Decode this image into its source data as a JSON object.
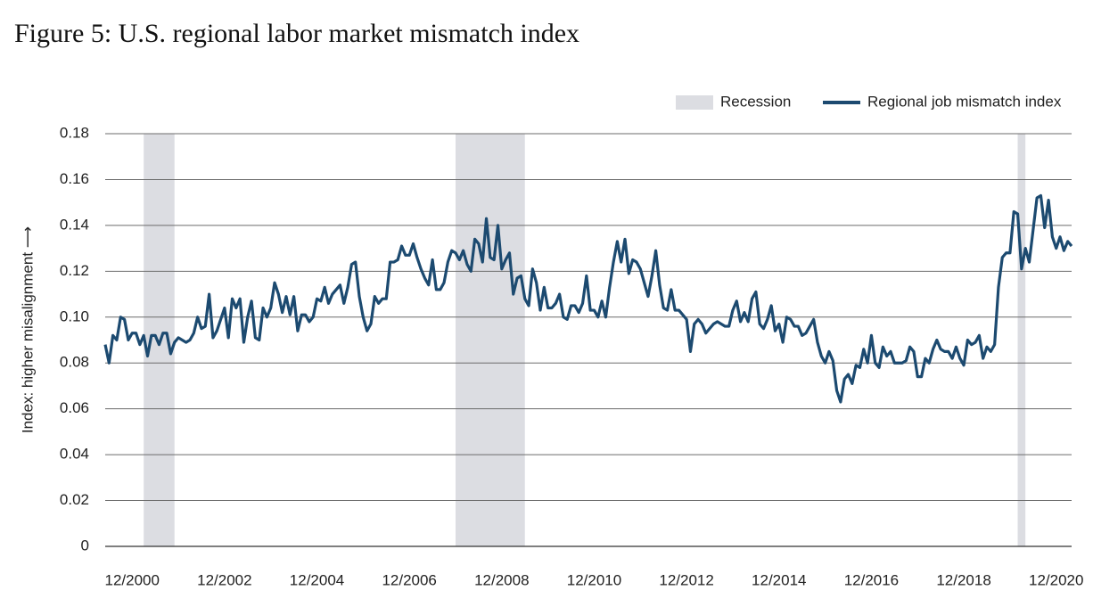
{
  "chart_data": {
    "type": "line",
    "title": "Figure 5: U.S. regional labor market mismatch index",
    "ylabel": "Index: higher misalignment ⟶",
    "recession_label": "Recession",
    "recession_color": "#dcdde2",
    "recessions": [
      {
        "start": "03/2001",
        "end": "11/2001"
      },
      {
        "start": "12/2007",
        "end": "06/2009"
      },
      {
        "start": "02/2020",
        "end": "04/2020"
      }
    ],
    "xlim": [
      "05/2000",
      "04/2021"
    ],
    "xticks": [
      "12/2000",
      "12/2002",
      "12/2004",
      "12/2006",
      "12/2008",
      "12/2010",
      "12/2012",
      "12/2014",
      "12/2016",
      "12/2018",
      "12/2020"
    ],
    "ylim": [
      0,
      0.18
    ],
    "yticks": [
      0,
      0.02,
      0.04,
      0.06,
      0.08,
      {
        "value": 0.1,
        "label": "0.10"
      },
      0.12,
      0.14,
      0.16,
      0.18
    ],
    "grid": true,
    "legend": "top-right",
    "x": [
      "05/2000",
      "06/2000",
      "07/2000",
      "08/2000",
      "09/2000",
      "10/2000",
      "11/2000",
      "12/2000",
      "01/2001",
      "02/2001",
      "03/2001",
      "04/2001",
      "05/2001",
      "06/2001",
      "07/2001",
      "08/2001",
      "09/2001",
      "10/2001",
      "11/2001",
      "12/2001",
      "01/2002",
      "02/2002",
      "03/2002",
      "04/2002",
      "05/2002",
      "06/2002",
      "07/2002",
      "08/2002",
      "09/2002",
      "10/2002",
      "11/2002",
      "12/2002",
      "01/2003",
      "02/2003",
      "03/2003",
      "04/2003",
      "05/2003",
      "06/2003",
      "07/2003",
      "08/2003",
      "09/2003",
      "10/2003",
      "11/2003",
      "12/2003",
      "01/2004",
      "02/2004",
      "03/2004",
      "04/2004",
      "05/2004",
      "06/2004",
      "07/2004",
      "08/2004",
      "09/2004",
      "10/2004",
      "11/2004",
      "12/2004",
      "01/2005",
      "02/2005",
      "03/2005",
      "04/2005",
      "05/2005",
      "06/2005",
      "07/2005",
      "08/2005",
      "09/2005",
      "10/2005",
      "11/2005",
      "12/2005",
      "01/2006",
      "02/2006",
      "03/2006",
      "04/2006",
      "05/2006",
      "06/2006",
      "07/2006",
      "08/2006",
      "09/2006",
      "10/2006",
      "11/2006",
      "12/2006",
      "01/2007",
      "02/2007",
      "03/2007",
      "04/2007",
      "05/2007",
      "06/2007",
      "07/2007",
      "08/2007",
      "09/2007",
      "10/2007",
      "11/2007",
      "12/2007",
      "01/2008",
      "02/2008",
      "03/2008",
      "04/2008",
      "05/2008",
      "06/2008",
      "07/2008",
      "08/2008",
      "09/2008",
      "10/2008",
      "11/2008",
      "12/2008",
      "01/2009",
      "02/2009",
      "03/2009",
      "04/2009",
      "05/2009",
      "06/2009",
      "07/2009",
      "08/2009",
      "09/2009",
      "10/2009",
      "11/2009",
      "12/2009",
      "01/2010",
      "02/2010",
      "03/2010",
      "04/2010",
      "05/2010",
      "06/2010",
      "07/2010",
      "08/2010",
      "09/2010",
      "10/2010",
      "11/2010",
      "12/2010",
      "01/2011",
      "02/2011",
      "03/2011",
      "04/2011",
      "05/2011",
      "06/2011",
      "07/2011",
      "08/2011",
      "09/2011",
      "10/2011",
      "11/2011",
      "12/2011",
      "01/2012",
      "02/2012",
      "03/2012",
      "04/2012",
      "05/2012",
      "06/2012",
      "07/2012",
      "08/2012",
      "09/2012",
      "10/2012",
      "11/2012",
      "12/2012",
      "01/2013",
      "02/2013",
      "03/2013",
      "04/2013",
      "05/2013",
      "06/2013",
      "07/2013",
      "08/2013",
      "09/2013",
      "10/2013",
      "11/2013",
      "12/2013",
      "01/2014",
      "02/2014",
      "03/2014",
      "04/2014",
      "05/2014",
      "06/2014",
      "07/2014",
      "08/2014",
      "09/2014",
      "10/2014",
      "11/2014",
      "12/2014",
      "01/2015",
      "02/2015",
      "03/2015",
      "04/2015",
      "05/2015",
      "06/2015",
      "07/2015",
      "08/2015",
      "09/2015",
      "10/2015",
      "11/2015",
      "12/2015",
      "01/2016",
      "02/2016",
      "03/2016",
      "04/2016",
      "05/2016",
      "06/2016",
      "07/2016",
      "08/2016",
      "09/2016",
      "10/2016",
      "11/2016",
      "12/2016",
      "01/2017",
      "02/2017",
      "03/2017",
      "04/2017",
      "05/2017",
      "06/2017",
      "07/2017",
      "08/2017",
      "09/2017",
      "10/2017",
      "11/2017",
      "12/2017",
      "01/2018",
      "02/2018",
      "03/2018",
      "04/2018",
      "05/2018",
      "06/2018",
      "07/2018",
      "08/2018",
      "09/2018",
      "10/2018",
      "11/2018",
      "12/2018",
      "01/2019",
      "02/2019",
      "03/2019",
      "04/2019",
      "05/2019",
      "06/2019",
      "07/2019",
      "08/2019",
      "09/2019",
      "10/2019",
      "11/2019",
      "12/2019",
      "01/2020",
      "02/2020",
      "03/2020",
      "04/2020",
      "05/2020",
      "06/2020",
      "07/2020",
      "08/2020",
      "09/2020",
      "10/2020",
      "11/2020",
      "12/2020",
      "01/2021",
      "02/2021",
      "03/2021",
      "04/2021"
    ],
    "series": [
      {
        "name": "Regional job mismatch index",
        "color": "#1c4a70",
        "values": [
          0.088,
          0.08,
          0.092,
          0.09,
          0.1,
          0.099,
          0.09,
          0.093,
          0.093,
          0.088,
          0.092,
          0.083,
          0.092,
          0.092,
          0.088,
          0.093,
          0.093,
          0.084,
          0.089,
          0.091,
          0.09,
          0.089,
          0.09,
          0.093,
          0.1,
          0.095,
          0.096,
          0.11,
          0.091,
          0.094,
          0.099,
          0.104,
          0.091,
          0.108,
          0.104,
          0.108,
          0.089,
          0.1,
          0.107,
          0.091,
          0.09,
          0.104,
          0.1,
          0.104,
          0.115,
          0.11,
          0.102,
          0.109,
          0.101,
          0.109,
          0.094,
          0.101,
          0.101,
          0.098,
          0.1,
          0.108,
          0.107,
          0.113,
          0.106,
          0.11,
          0.112,
          0.114,
          0.106,
          0.113,
          0.123,
          0.124,
          0.109,
          0.1,
          0.094,
          0.097,
          0.109,
          0.106,
          0.108,
          0.108,
          0.124,
          0.124,
          0.125,
          0.131,
          0.127,
          0.127,
          0.132,
          0.126,
          0.121,
          0.117,
          0.114,
          0.125,
          0.112,
          0.112,
          0.115,
          0.124,
          0.129,
          0.128,
          0.125,
          0.129,
          0.123,
          0.12,
          0.134,
          0.132,
          0.124,
          0.143,
          0.126,
          0.125,
          0.14,
          0.121,
          0.125,
          0.128,
          0.11,
          0.117,
          0.118,
          0.108,
          0.105,
          0.121,
          0.115,
          0.103,
          0.113,
          0.104,
          0.104,
          0.106,
          0.11,
          0.1,
          0.099,
          0.105,
          0.105,
          0.102,
          0.106,
          0.118,
          0.103,
          0.103,
          0.1,
          0.107,
          0.1,
          0.113,
          0.124,
          0.133,
          0.124,
          0.134,
          0.119,
          0.125,
          0.124,
          0.121,
          0.115,
          0.109,
          0.118,
          0.129,
          0.114,
          0.104,
          0.103,
          0.112,
          0.103,
          0.103,
          0.101,
          0.099,
          0.085,
          0.097,
          0.099,
          0.097,
          0.093,
          0.095,
          0.097,
          0.098,
          0.097,
          0.096,
          0.096,
          0.103,
          0.107,
          0.098,
          0.102,
          0.098,
          0.108,
          0.111,
          0.097,
          0.095,
          0.099,
          0.105,
          0.094,
          0.097,
          0.089,
          0.1,
          0.099,
          0.096,
          0.096,
          0.092,
          0.093,
          0.096,
          0.099,
          0.089,
          0.083,
          0.08,
          0.085,
          0.081,
          0.068,
          0.063,
          0.073,
          0.075,
          0.071,
          0.079,
          0.078,
          0.086,
          0.08,
          0.092,
          0.08,
          0.078,
          0.087,
          0.083,
          0.085,
          0.08,
          0.08,
          0.08,
          0.081,
          0.087,
          0.085,
          0.074,
          0.074,
          0.082,
          0.08,
          0.086,
          0.09,
          0.086,
          0.085,
          0.085,
          0.082,
          0.087,
          0.082,
          0.079,
          0.09,
          0.088,
          0.089,
          0.092,
          0.082,
          0.087,
          0.085,
          0.088,
          0.113,
          0.126,
          0.128,
          0.128,
          0.146,
          0.145,
          0.121,
          0.13,
          0.124,
          0.138,
          0.152,
          0.153,
          0.139,
          0.151,
          0.135,
          0.13,
          0.135,
          0.129,
          0.133,
          0.131
        ]
      }
    ]
  }
}
